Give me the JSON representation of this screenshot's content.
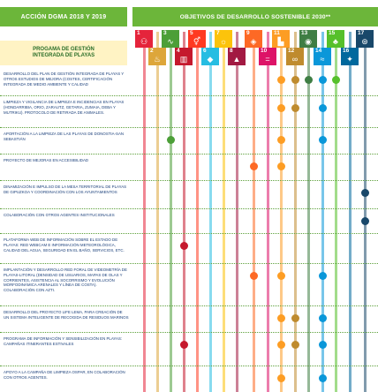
{
  "header": {
    "left_title": "ACCIÓN DGMA 2018 Y 2019",
    "right_title": "OBJETIVOS DE DESARROLLO SOSTENIBLE 2030**"
  },
  "program_box": {
    "line1": "PROGAMA DE GESTIÓN",
    "line2": "INTEGRADA DE PLAYAS"
  },
  "sdgs": [
    {
      "num": "1",
      "color": "#e5243b",
      "icon": "people-icon",
      "glyph": "⚇"
    },
    {
      "num": "2",
      "color": "#dda63a",
      "icon": "food-bowl-icon",
      "glyph": "♨"
    },
    {
      "num": "3",
      "color": "#4c9f38",
      "icon": "heartbeat-icon",
      "glyph": "∿"
    },
    {
      "num": "4",
      "color": "#c5192d",
      "icon": "book-icon",
      "glyph": "▥"
    },
    {
      "num": "5",
      "color": "#ff3a21",
      "icon": "gender-icon",
      "glyph": "⚥"
    },
    {
      "num": "6",
      "color": "#26bde2",
      "icon": "water-drop-icon",
      "glyph": "◆"
    },
    {
      "num": "7",
      "color": "#fcc30b",
      "icon": "sun-icon",
      "glyph": "☼"
    },
    {
      "num": "8",
      "color": "#a21942",
      "icon": "growth-chart-icon",
      "glyph": "▲"
    },
    {
      "num": "9",
      "color": "#fd6925",
      "icon": "cubes-icon",
      "glyph": "◈"
    },
    {
      "num": "10",
      "color": "#dd1367",
      "icon": "equality-icon",
      "glyph": "="
    },
    {
      "num": "11",
      "color": "#fd9d24",
      "icon": "city-icon",
      "glyph": "▙"
    },
    {
      "num": "12",
      "color": "#bf8b2e",
      "icon": "infinity-icon",
      "glyph": "∞"
    },
    {
      "num": "13",
      "color": "#3f7e44",
      "icon": "eye-globe-icon",
      "glyph": "◉"
    },
    {
      "num": "14",
      "color": "#0a97d9",
      "icon": "fish-icon",
      "glyph": "≈"
    },
    {
      "num": "15",
      "color": "#56c02b",
      "icon": "tree-icon",
      "glyph": "♣"
    },
    {
      "num": "16",
      "color": "#00689d",
      "icon": "dove-icon",
      "glyph": "✦"
    },
    {
      "num": "17",
      "color": "#19486a",
      "icon": "rings-icon",
      "glyph": "⊛"
    }
  ],
  "rows": [
    {
      "label": "Desarrollo del plan de gestión integrada de playas y otros estudios de mejora (costes, certificación integrada de medio ambiente y calidad",
      "marks": [
        11,
        12,
        13,
        14,
        15
      ]
    },
    {
      "label": "Limpieza y vigilancia de limpieza e incidencias en playas (Hondarribia, Orio, Zarautz, Getaria, Zumaia, Deba y Mutriku). Protocolo de retirada de animales.",
      "marks": [
        11,
        12,
        14
      ]
    },
    {
      "label": "Aportación a la limpieza de las playas de Donostia-San Sebastián",
      "marks": [
        3,
        11,
        14
      ]
    },
    {
      "label": "Proyecto de mejoras en accesibilidad",
      "marks": [
        9,
        11
      ]
    },
    {
      "label": "Dinamización e impulso de la mesa territorial de playas de Gipuzkoa y coordinación con los ayuntamientos",
      "marks": [
        17
      ]
    },
    {
      "label": "Colaboración con otros agentes institucionales",
      "marks": [
        17
      ]
    },
    {
      "label": "Plataforma web de información sobre el estado de playas: Red webcam e información meteorológica, calidad del agua, seguridad en el baño, servicios, etc.",
      "marks": [
        4
      ]
    },
    {
      "label": "Implantación y desarrollo red foral de videometría de playas-litoral (densidad de usuarios, mapas de olas y corrientes, asistencia al socorrismo y evolución morfodinámica arenales y línea de costa). Colaboración con AZTI.",
      "marks": [
        9,
        11,
        14
      ]
    },
    {
      "label": "Desarrollo del proyecto Life Lema, para creación de un sistema inteligente de recogida de residuos marinos",
      "marks": [
        11,
        12,
        14
      ]
    },
    {
      "label": "Programa de información y sensibilización en playas: campañas itinerantes estivales",
      "marks": [
        4,
        11,
        12,
        14
      ]
    },
    {
      "label": "Apoyo a la campaña de limpieza Ospar, en colaboración con otros agentes.",
      "marks": [
        11,
        14
      ]
    }
  ]
}
